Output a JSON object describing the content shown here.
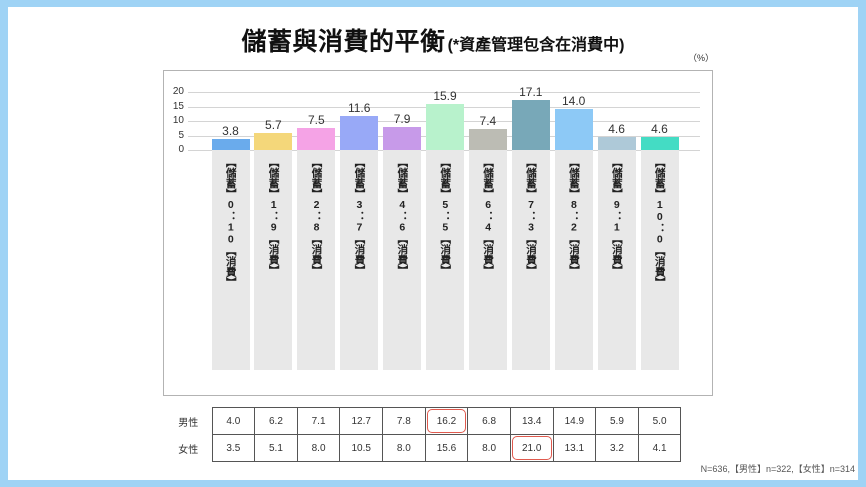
{
  "title": "儲蓄與消費的平衡",
  "subtitle": "(*資產管理包含在消費中)",
  "unit": "（%）",
  "chart_data": {
    "type": "bar",
    "categories": [
      "【儲蓄】0：10【消費】",
      "【儲蓄】1：9【消費】",
      "【儲蓄】2：8【消費】",
      "【儲蓄】3：7【消費】",
      "【儲蓄】4：6【消費】",
      "【儲蓄】5：5【消費】",
      "【儲蓄】6：4【消費】",
      "【儲蓄】7：3【消費】",
      "【儲蓄】8：2【消費】",
      "【儲蓄】9：1【消費】",
      "【儲蓄】10：0【消費】"
    ],
    "values": [
      3.8,
      5.7,
      7.5,
      11.6,
      7.9,
      15.9,
      7.4,
      17.1,
      14.0,
      4.6,
      4.6
    ],
    "colors": [
      "#6aabec",
      "#f4d77a",
      "#f5a3e6",
      "#98a9f7",
      "#c79ae9",
      "#b8f2cc",
      "#bcbcb4",
      "#78a8b8",
      "#8dc9f6",
      "#aec9d8",
      "#44dcc4"
    ],
    "ylim": [
      0,
      20
    ],
    "yticks": [
      20,
      15,
      10,
      5,
      0
    ],
    "grid": true,
    "legend": "none"
  },
  "table": {
    "highlight_color": "#e05a4e",
    "rows": [
      {
        "label": "男性",
        "values": [
          4.0,
          6.2,
          7.1,
          12.7,
          7.8,
          16.2,
          6.8,
          13.4,
          14.9,
          5.9,
          5.0
        ],
        "highlighted": [
          false,
          false,
          false,
          false,
          false,
          true,
          false,
          false,
          false,
          false,
          false
        ]
      },
      {
        "label": "女性",
        "values": [
          3.5,
          5.1,
          8.0,
          10.5,
          8.0,
          15.6,
          8.0,
          21.0,
          13.1,
          3.2,
          4.1
        ],
        "highlighted": [
          false,
          false,
          false,
          false,
          false,
          false,
          false,
          true,
          false,
          false,
          false
        ]
      }
    ]
  },
  "footnote": "N=636,【男性】n=322,【女性】n=314"
}
